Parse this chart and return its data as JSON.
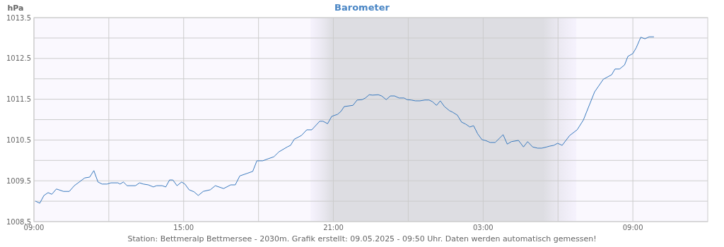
{
  "chart_data": {
    "type": "line",
    "title": "Barometer",
    "ylabel": "hPa",
    "annotations": [
      "Station: Bettmeralp Bettmersee - 2030m. Grafik erstellt: 09.05.2025 - 09:50 Uhr. Daten werden automatisch gemessen!"
    ],
    "x": [
      "2025-05-08T09:04",
      "2025-05-08T09:14",
      "2025-05-08T09:24",
      "2025-05-08T09:34",
      "2025-05-08T09:43",
      "2025-05-08T09:54",
      "2025-05-08T10:11",
      "2025-05-08T10:25",
      "2025-05-08T10:37",
      "2025-05-08T10:49",
      "2025-05-08T11:02",
      "2025-05-08T11:14",
      "2025-05-08T11:24",
      "2025-05-08T11:34",
      "2025-05-08T11:44",
      "2025-05-08T11:56",
      "2025-05-08T12:05",
      "2025-05-08T12:22",
      "2025-05-08T12:27",
      "2025-05-08T12:35",
      "2025-05-08T12:44",
      "2025-05-08T13:04",
      "2025-05-08T13:14",
      "2025-05-08T13:23",
      "2025-05-08T13:35",
      "2025-05-08T13:47",
      "2025-05-08T13:55",
      "2025-05-08T14:08",
      "2025-05-08T14:17",
      "2025-05-08T14:26",
      "2025-05-08T14:34",
      "2025-05-08T14:44",
      "2025-05-08T14:55",
      "2025-05-08T15:03",
      "2025-05-08T15:13",
      "2025-05-08T15:25",
      "2025-05-08T15:35",
      "2025-05-08T15:47",
      "2025-05-08T16:04",
      "2025-05-08T16:16",
      "2025-05-08T16:36",
      "2025-05-08T16:53",
      "2025-05-08T17:04",
      "2025-05-08T17:15",
      "2025-05-08T17:32",
      "2025-05-08T17:46",
      "2025-05-08T17:56",
      "2025-05-08T18:10",
      "2025-05-08T18:23",
      "2025-05-08T18:37",
      "2025-05-08T18:49",
      "2025-05-08T19:09",
      "2025-05-08T19:17",
      "2025-05-08T19:26",
      "2025-05-08T19:43",
      "2025-05-08T19:56",
      "2025-05-08T20:08",
      "2025-05-08T20:27",
      "2025-05-08T20:35",
      "2025-05-08T20:46",
      "2025-05-08T20:56",
      "2025-05-08T21:10",
      "2025-05-08T21:18",
      "2025-05-08T21:26",
      "2025-05-08T21:47",
      "2025-05-08T21:57",
      "2025-05-08T22:09",
      "2025-05-08T22:17",
      "2025-05-08T22:26",
      "2025-05-08T22:34",
      "2025-05-08T22:48",
      "2025-05-08T22:56",
      "2025-05-08T23:07",
      "2025-05-08T23:17",
      "2025-05-08T23:27",
      "2025-05-08T23:38",
      "2025-05-08T23:50",
      "2025-05-08T23:57",
      "2025-05-09T00:07",
      "2025-05-09T00:17",
      "2025-05-09T00:28",
      "2025-05-09T00:40",
      "2025-05-09T00:50",
      "2025-05-09T00:58",
      "2025-05-09T01:08",
      "2025-05-09T01:17",
      "2025-05-09T01:27",
      "2025-05-09T01:39",
      "2025-05-09T01:47",
      "2025-05-09T01:58",
      "2025-05-09T02:08",
      "2025-05-09T02:18",
      "2025-05-09T02:28",
      "2025-05-09T02:37",
      "2025-05-09T02:47",
      "2025-05-09T02:57",
      "2025-05-09T03:05",
      "2025-05-09T03:17",
      "2025-05-09T03:29",
      "2025-05-09T03:48",
      "2025-05-09T03:58",
      "2025-05-09T04:08",
      "2025-05-09T04:25",
      "2025-05-09T04:37",
      "2025-05-09T04:47",
      "2025-05-09T04:59",
      "2025-05-09T05:11",
      "2025-05-09T05:21",
      "2025-05-09T05:33",
      "2025-05-09T05:40",
      "2025-05-09T05:50",
      "2025-05-09T05:59",
      "2025-05-09T06:10",
      "2025-05-09T06:28",
      "2025-05-09T06:46",
      "2025-05-09T07:01",
      "2025-05-09T07:28",
      "2025-05-09T07:49",
      "2025-05-09T08:09",
      "2025-05-09T08:17",
      "2025-05-09T08:28",
      "2025-05-09T08:40",
      "2025-05-09T08:48",
      "2025-05-09T09:00",
      "2025-05-09T09:08",
      "2025-05-09T09:19",
      "2025-05-09T09:29",
      "2025-05-09T09:39",
      "2025-05-09T09:50"
    ],
    "series": [
      {
        "color": "#3b7bbf",
        "values": [
          1009.0,
          1008.95,
          1009.14,
          1009.21,
          1009.17,
          1009.3,
          1009.24,
          1009.24,
          1009.38,
          1009.47,
          1009.57,
          1009.59,
          1009.75,
          1009.47,
          1009.42,
          1009.42,
          1009.45,
          1009.45,
          1009.42,
          1009.47,
          1009.38,
          1009.38,
          1009.45,
          1009.42,
          1009.4,
          1009.35,
          1009.38,
          1009.38,
          1009.35,
          1009.52,
          1009.52,
          1009.38,
          1009.47,
          1009.42,
          1009.28,
          1009.23,
          1009.14,
          1009.24,
          1009.28,
          1009.38,
          1009.31,
          1009.4,
          1009.4,
          1009.62,
          1009.68,
          1009.73,
          1009.99,
          1009.99,
          1010.04,
          1010.09,
          1010.21,
          1010.33,
          1010.37,
          1010.52,
          1010.61,
          1010.75,
          1010.75,
          1010.96,
          1010.96,
          1010.9,
          1011.08,
          1011.13,
          1011.2,
          1011.32,
          1011.35,
          1011.48,
          1011.49,
          1011.53,
          1011.61,
          1011.6,
          1011.61,
          1011.58,
          1011.49,
          1011.58,
          1011.58,
          1011.53,
          1011.53,
          1011.49,
          1011.48,
          1011.46,
          1011.46,
          1011.48,
          1011.48,
          1011.44,
          1011.35,
          1011.46,
          1011.32,
          1011.22,
          1011.18,
          1011.11,
          1010.94,
          1010.89,
          1010.82,
          1010.85,
          1010.65,
          1010.51,
          1010.49,
          1010.44,
          1010.44,
          1010.63,
          1010.4,
          1010.46,
          1010.49,
          1010.33,
          1010.46,
          1010.33,
          1010.3,
          1010.3,
          1010.33,
          1010.35,
          1010.37,
          1010.42,
          1010.37,
          1010.61,
          1010.75,
          1010.99,
          1011.68,
          1011.99,
          1012.1,
          1012.24,
          1012.24,
          1012.34,
          1012.55,
          1012.62,
          1012.76,
          1013.02,
          1012.98,
          1013.03,
          1013.03
        ]
      }
    ],
    "xlim": [
      "2025-05-08T09:00",
      "2025-05-09T12:00"
    ],
    "xticks": [
      {
        "value": "2025-05-08T09:00",
        "label": "09:00"
      },
      {
        "value": "2025-05-08T12:00",
        "label": null
      },
      {
        "value": "2025-05-08T15:00",
        "label": "15:00"
      },
      {
        "value": "2025-05-08T18:00",
        "label": null
      },
      {
        "value": "2025-05-08T21:00",
        "label": "21:00"
      },
      {
        "value": "2025-05-09T00:00",
        "label": null
      },
      {
        "value": "2025-05-09T03:00",
        "label": "03:00"
      },
      {
        "value": "2025-05-09T06:00",
        "label": null
      },
      {
        "value": "2025-05-09T09:00",
        "label": "09:00"
      }
    ],
    "ylim": [
      1008.5,
      1013.5
    ],
    "yticks": [
      1008.5,
      {
        "value": 1009,
        "label": null
      },
      1009.5,
      {
        "value": 1010,
        "label": null
      },
      1010.5,
      {
        "value": 1011,
        "label": null
      },
      1011.5,
      {
        "value": 1012,
        "label": null
      },
      1012.5,
      {
        "value": 1013,
        "label": null
      },
      1013.5
    ],
    "grid": true,
    "bands": [
      {
        "axis": "x",
        "from": "2025-05-08T20:05",
        "to": "2025-05-09T06:44",
        "color": "#dddde2"
      }
    ],
    "marker": "none",
    "line_style": "solid"
  }
}
